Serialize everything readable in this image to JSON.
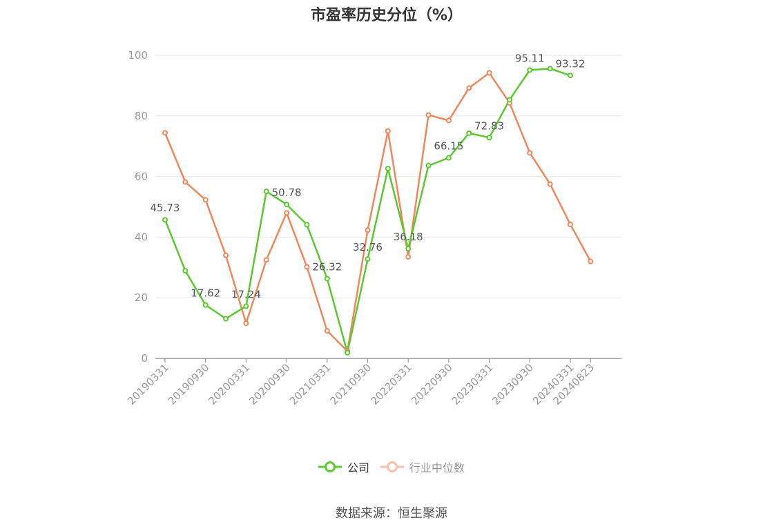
{
  "chart_data": {
    "type": "line",
    "title": "市盈率历史分位（%）",
    "x": [
      "20190331",
      "20190630",
      "20190930",
      "20191231",
      "20200331",
      "20200630",
      "20200930",
      "20201231",
      "20210331",
      "20210630",
      "20210930",
      "20211231",
      "20220331",
      "20220630",
      "20220930",
      "20221231",
      "20230331",
      "20230630",
      "20230930",
      "20231231",
      "20240331",
      "20240823"
    ],
    "x_tick_labels": [
      "20190331",
      "20190930",
      "20200331",
      "20200930",
      "20210331",
      "20210930",
      "20220331",
      "20220930",
      "20230331",
      "20230930",
      "20240331",
      "20240823"
    ],
    "y_ticks": [
      0,
      20,
      40,
      60,
      80,
      100
    ],
    "ylim": [
      0,
      100
    ],
    "grid": "horizontal",
    "legend_position": "bottom",
    "series": [
      {
        "name": "公司",
        "color": "#5ac92e",
        "values": [
          45.73,
          28.9,
          17.62,
          13.1,
          17.24,
          55.1,
          50.78,
          44.1,
          26.32,
          1.9,
          32.76,
          62.6,
          36.18,
          63.6,
          66.15,
          74.3,
          72.83,
          85.3,
          95.11,
          95.6,
          93.32,
          null
        ],
        "labels": [
          "45.73",
          "",
          "17.62",
          "",
          "17.24",
          "",
          "50.78",
          "",
          "26.32",
          "",
          "32.76",
          "",
          "36.18",
          "",
          "66.15",
          "",
          "72.83",
          "",
          "95.11",
          "",
          "93.32",
          ""
        ]
      },
      {
        "name": "行业中位数",
        "color": "#f0875a",
        "values": [
          74.4,
          58.2,
          52.3,
          34.0,
          11.6,
          32.5,
          48.0,
          30.2,
          9.1,
          2.4,
          42.3,
          75.0,
          33.5,
          80.3,
          78.5,
          89.2,
          94.2,
          84.3,
          67.8,
          57.5,
          44.2,
          32.0
        ]
      }
    ]
  },
  "source_text": "数据来源：恒生聚源"
}
